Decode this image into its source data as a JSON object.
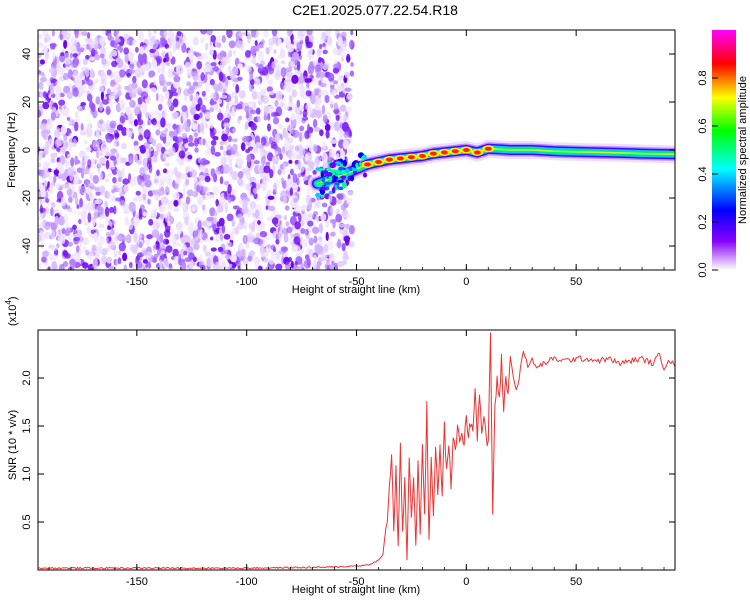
{
  "figure": {
    "title": "C2E1.2025.077.22.54.R18"
  },
  "chart_data": [
    {
      "type": "heatmap",
      "xlabel": "Height of straight line (km)",
      "ylabel": "Frequency (Hz)",
      "xlim": [
        -195,
        95
      ],
      "ylim": [
        -50,
        50
      ],
      "xticks": [
        "-150",
        "-100",
        "-50",
        "0",
        "50"
      ],
      "yticks": [
        "-40",
        "-20",
        "0",
        "20",
        "40"
      ],
      "noise_region": {
        "x_range": [
          -195,
          -52
        ],
        "y_range": [
          -50,
          50
        ]
      },
      "signal_ridge": {
        "x": [
          -68,
          -62,
          -55,
          -50,
          -45,
          -40,
          -35,
          -30,
          -25,
          -20,
          -15,
          -10,
          -5,
          0,
          5,
          10,
          20,
          30,
          40,
          50,
          60,
          70,
          80,
          95
        ],
        "y": [
          -14,
          -12,
          -10,
          -8,
          -6,
          -5,
          -4,
          -3.5,
          -3,
          -2.5,
          -1.5,
          -1,
          -0.5,
          0,
          -1,
          0.5,
          0,
          0,
          -0.5,
          -0.8,
          -1,
          -1.2,
          -1.5,
          -1.8
        ]
      },
      "colorbar": {
        "label": "Normalized spectral amplitude",
        "range": [
          0,
          1
        ],
        "ticks": [
          "0.0",
          "0.2",
          "0.4",
          "0.6",
          "0.8"
        ],
        "colors": [
          "#ffffff",
          "#8800ff",
          "#0000ff",
          "#00ffff",
          "#00ff00",
          "#ffff00",
          "#ff0000",
          "#ff00ff"
        ]
      },
      "grid": false
    },
    {
      "type": "line",
      "xlabel": "Height of straight line (km)",
      "ylabel": "SNR (10 * v/v)",
      "scale_label": "(x10",
      "scale_exp": "4",
      "scale_close": ")",
      "xlim": [
        -195,
        95
      ],
      "ylim": [
        0,
        2.5
      ],
      "xticks": [
        "-150",
        "-100",
        "-50",
        "0",
        "50"
      ],
      "yticks": [
        "0.5",
        "1.0",
        "1.5",
        "2.0"
      ],
      "series": [
        {
          "color": "#ee3333",
          "x": [
            -195,
            -150,
            -100,
            -60,
            -45,
            -40,
            -38,
            -36,
            -35,
            -34,
            -33,
            -32,
            -31,
            -30,
            -29,
            -28,
            -27,
            -26,
            -25,
            -24,
            -23,
            -22,
            -21,
            -20,
            -19,
            -18,
            -17,
            -16,
            -15,
            -14,
            -13,
            -12,
            -11,
            -10,
            -9,
            -8,
            -7,
            -6,
            -5,
            -4,
            -3,
            -2,
            -1,
            0,
            1,
            2,
            3,
            4,
            5,
            6,
            7,
            8,
            9,
            10,
            11,
            12,
            13,
            14,
            15,
            16,
            17,
            18,
            19,
            20,
            22,
            24,
            26,
            28,
            30,
            32,
            35,
            40,
            45,
            50,
            55,
            60,
            65,
            70,
            75,
            80,
            85,
            88,
            90,
            92,
            95
          ],
          "y": [
            0.02,
            0.02,
            0.02,
            0.03,
            0.05,
            0.1,
            0.15,
            0.55,
            0.85,
            1.2,
            0.4,
            1.1,
            0.2,
            1.3,
            0.35,
            1.0,
            0.1,
            1.2,
            0.5,
            1.0,
            0.25,
            1.1,
            0.4,
            1.25,
            0.55,
            1.7,
            0.3,
            1.15,
            0.6,
            1.3,
            0.8,
            1.35,
            0.75,
            1.5,
            1.0,
            1.3,
            0.9,
            1.4,
            1.2,
            1.5,
            1.35,
            1.45,
            1.3,
            1.6,
            1.4,
            1.55,
            1.45,
            1.95,
            1.4,
            1.85,
            1.45,
            1.6,
            1.35,
            1.3,
            2.5,
            0.58,
            1.7,
            2.0,
            1.75,
            2.2,
            1.65,
            2.05,
            1.8,
            2.25,
            1.9,
            2.0,
            2.3,
            2.1,
            2.2,
            2.1,
            2.15,
            2.2,
            2.18,
            2.2,
            2.2,
            2.18,
            2.2,
            2.15,
            2.18,
            2.2,
            2.15,
            2.25,
            2.1,
            2.2,
            2.12
          ]
        }
      ],
      "grid": false
    }
  ]
}
